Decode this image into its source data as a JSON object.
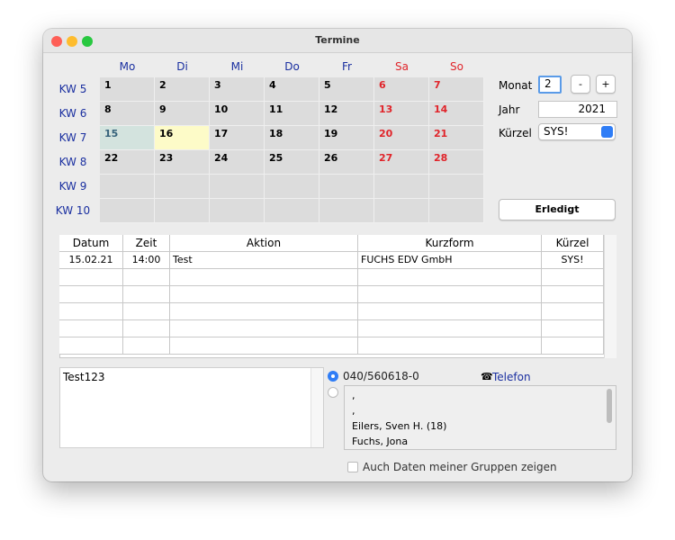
{
  "window": {
    "title": "Termine"
  },
  "calendar": {
    "weekdays": [
      "Mo",
      "Di",
      "Mi",
      "Do",
      "Fr",
      "Sa",
      "So"
    ],
    "weeks": [
      {
        "label": "KW 5",
        "days": [
          1,
          2,
          3,
          4,
          5,
          6,
          7
        ]
      },
      {
        "label": "KW 6",
        "days": [
          8,
          9,
          10,
          11,
          12,
          13,
          14
        ]
      },
      {
        "label": "KW 7",
        "days": [
          15,
          16,
          17,
          18,
          19,
          20,
          21
        ]
      },
      {
        "label": "KW 8",
        "days": [
          22,
          23,
          24,
          25,
          26,
          27,
          28
        ]
      },
      {
        "label": "KW 9",
        "days": []
      },
      {
        "label": "KW 10",
        "days": []
      }
    ]
  },
  "controls": {
    "monat_label": "Monat",
    "monat": "2",
    "minus": "-",
    "plus": "+",
    "jahr_label": "Jahr",
    "jahr": "2021",
    "kuerzel_label": "Kürzel",
    "kuerzel": "SYS!",
    "erledigt": "Erledigt"
  },
  "table": {
    "columns": [
      "Datum",
      "Zeit",
      "Aktion",
      "Kurzform",
      "Kürzel"
    ],
    "rows": [
      [
        "15.02.21",
        "14:00",
        "Test",
        "FUCHS EDV GmbH",
        "SYS!"
      ]
    ]
  },
  "notes": "Test123",
  "contact": {
    "phone": "040/560618-0",
    "phone_type": "Telefon",
    "entries": [
      ",",
      ",",
      "Eilers, Sven H.  (18)",
      "Fuchs, Jona"
    ]
  },
  "group_checkbox": "Auch Daten meiner Gruppen zeigen"
}
